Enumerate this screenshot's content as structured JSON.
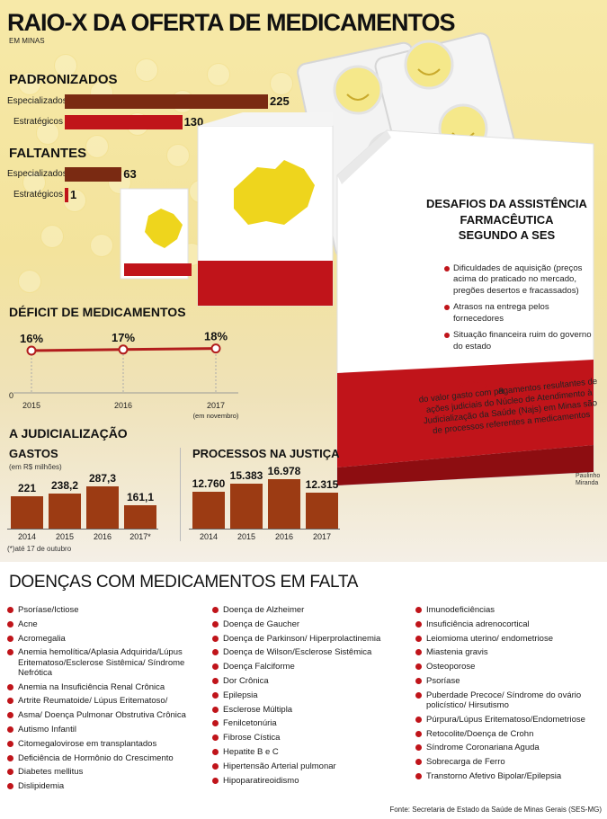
{
  "header": {
    "title": "RAIO-X DA OFERTA DE MEDICAMENTOS",
    "subtitle": "EM MINAS"
  },
  "colors": {
    "dark_red": "#7a2a12",
    "red": "#c0141a",
    "brown": "#9c3b13",
    "yellow": "#f3e39c"
  },
  "chart_data": [
    {
      "type": "bar",
      "title": "PADRONIZADOS",
      "categories": [
        "Especializados",
        "Estratégicos"
      ],
      "values": [
        225,
        130
      ],
      "labels": [
        "225",
        "130"
      ]
    },
    {
      "type": "bar",
      "title": "FALTANTES",
      "categories": [
        "Especializados",
        "Estratégicos"
      ],
      "values": [
        63,
        1
      ],
      "labels": [
        "63",
        "1"
      ]
    },
    {
      "type": "line",
      "title": "DÉFICIT DE MEDICAMENTOS",
      "x": [
        "2015",
        "2016",
        "2017"
      ],
      "x_notes": [
        "",
        "",
        "(em novembro)"
      ],
      "values": [
        16,
        17,
        18
      ],
      "labels": [
        "16%",
        "17%",
        "18%"
      ],
      "y_zero_label": "0"
    },
    {
      "type": "bar",
      "title": "GASTOS",
      "ylabel": "(em R$ milhões)",
      "categories": [
        "2014",
        "2015",
        "2016",
        "2017*"
      ],
      "values": [
        221,
        238.2,
        287.3,
        161.1
      ],
      "labels": [
        "221",
        "238,2",
        "287,3",
        "161,1"
      ],
      "footnote": "(*)até 17 de outubro"
    },
    {
      "type": "bar",
      "title": "PROCESSOS NA JUSTIÇA",
      "categories": [
        "2014",
        "2015",
        "2016",
        "2017"
      ],
      "values": [
        12760,
        15383,
        16978,
        12315
      ],
      "labels": [
        "12.760",
        "15.383",
        "16.978",
        "12.315"
      ]
    }
  ],
  "judicializacao": {
    "heading": "A JUDICIALIZAÇÃO"
  },
  "info_box": {
    "title_lines": [
      "DESAFIOS DA ASSISTÊNCIA",
      "FARMACÊUTICA",
      "SEGUNDO A SES"
    ],
    "items": [
      "Dificuldades de aquisição (preços acima do praticado no mercado, pregões desertos e fracassados)",
      "Atrasos na entrega pelos fornecedores",
      "Situação financeira ruim do governo do estado"
    ],
    "pct_low": "70%",
    "pct_connector": "a",
    "pct_high": "80%",
    "pct_text": "do valor gasto com pagamentos resultantes de ações judiciais do Núcleo de Atendimento à Judicialização da Saúde (Najs) em Minas são de processos referentes a medicamentos",
    "credit": "Paulinho Miranda"
  },
  "diseases": {
    "title": "DOENÇAS COM MEDICAMENTOS EM FALTA",
    "col1": [
      "Psoríase/Ictiose",
      "Acne",
      "Acromegalia",
      "Anemia hemolítica/Aplasia Adquirida/Lúpus Eritematoso/Esclerose Sistêmica/ Síndrome Nefrótica",
      "Anemia na Insuficiência Renal Crônica",
      "Artrite Reumatoide/ Lúpus Eritematoso/",
      "Asma/ Doença Pulmonar Obstrutiva Crônica",
      "Autismo Infantil",
      "Citomegalovirose em transplantados",
      "Deficiência de Hormônio do Crescimento",
      "Diabetes mellitus",
      "Dislipidemia"
    ],
    "col2": [
      "Doença de Alzheimer",
      "Doença de Gaucher",
      "Doença de Parkinson/ Hiperprolactinemia",
      "Doença de Wilson/Esclerose Sistêmica",
      "Doença Falciforme",
      "Dor Crônica",
      "Epilepsia",
      "Esclerose Múltipla",
      "Fenilcetonúria",
      "Fibrose Cística",
      "Hepatite B e C",
      "Hipertensão Arterial pulmonar",
      "Hipoparatireoidismo"
    ],
    "col3": [
      "Imunodeficiências",
      "Insuficiência adrenocortical",
      "Leiomioma uterino/ endometriose",
      "Miastenia gravis",
      "Osteoporose",
      "Psoríase",
      "Puberdade Precoce/ Síndrome do ovário policístico/ Hirsutismo",
      "Púrpura/Lúpus Eritematoso/Endometriose",
      "Retocolite/Doença de Crohn",
      "Síndrome Coronariana Aguda",
      "Sobrecarga de Ferro",
      "Transtorno Afetivo Bipolar/Epilepsia"
    ]
  },
  "source": "Fonte: Secretaria de Estado da Saúde de Minas Gerais (SES-MG)"
}
